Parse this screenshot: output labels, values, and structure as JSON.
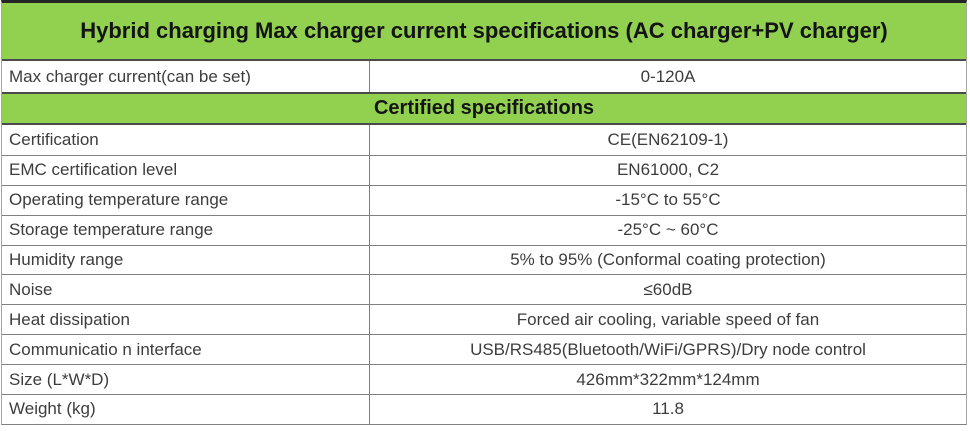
{
  "colors": {
    "header-bg": "#92d050",
    "header-text": "#141414",
    "body-text": "#3d3d3d",
    "border": "#808080",
    "border-light": "#a6a6a6",
    "border-dark": "#4a4a4a",
    "outer-border": "#262626",
    "row-bg": "#ffffff"
  },
  "table": {
    "section1": {
      "title": "Hybrid charging Max charger current specifications (AC charger+PV charger)",
      "rows": [
        {
          "label": "Max charger current(can be set)",
          "value": "0-120A"
        }
      ]
    },
    "section2": {
      "title": "Certified specifications",
      "rows": [
        {
          "label": "Certification",
          "value": "CE(EN62109-1)"
        },
        {
          "label": "EMC certification level",
          "value": "EN61000, C2"
        },
        {
          "label": "Operating temperature range",
          "value": "-15°C to 55°C"
        },
        {
          "label": "Storage temperature range",
          "value": "-25°C ~ 60°C"
        },
        {
          "label": "Humidity range",
          "value": "5% to 95% (Conformal coating protection)"
        },
        {
          "label": "Noise",
          "value": "≤60dB"
        },
        {
          "label": "Heat dissipation",
          "value": "Forced air cooling, variable speed of fan"
        },
        {
          "label": "Communicatio n interface",
          "value": "USB/RS485(Bluetooth/WiFi/GPRS)/Dry node control"
        },
        {
          "label": "Size (L*W*D)",
          "value": "426mm*322mm*124mm"
        },
        {
          "label": "Weight (kg)",
          "value": "11.8"
        }
      ]
    }
  }
}
